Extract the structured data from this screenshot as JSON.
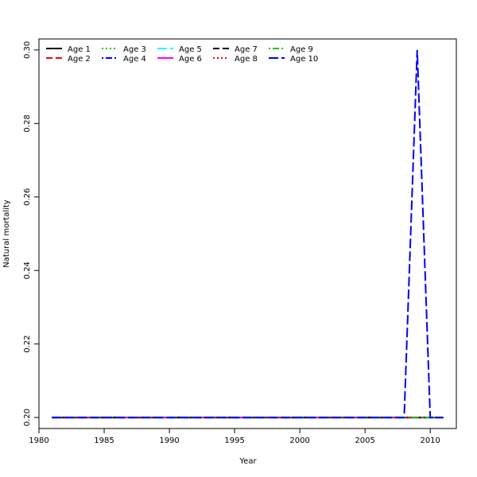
{
  "chart_data": {
    "type": "line",
    "title": "",
    "xlabel": "Year",
    "ylabel": "Natural mortality",
    "xlim": [
      1980,
      2012
    ],
    "ylim": [
      0.197,
      0.303
    ],
    "xticks": [
      1980,
      1985,
      1990,
      1995,
      2000,
      2005,
      2010
    ],
    "yticks": [
      0.2,
      0.22,
      0.24,
      0.26,
      0.28,
      0.3
    ],
    "ytick_labels": [
      "0.20",
      "0.22",
      "0.24",
      "0.26",
      "0.28",
      "0.30"
    ],
    "grid": false,
    "legend_position": "top-left",
    "x": [
      1981,
      1982,
      1983,
      1984,
      1985,
      1986,
      1987,
      1988,
      1989,
      1990,
      1991,
      1992,
      1993,
      1994,
      1995,
      1996,
      1997,
      1998,
      1999,
      2000,
      2001,
      2002,
      2003,
      2004,
      2005,
      2006,
      2007,
      2008,
      2009,
      2010,
      2011
    ],
    "series": [
      {
        "name": "Age 1",
        "color": "#000000",
        "dash": "solid",
        "values": [
          0.2,
          0.2,
          0.2,
          0.2,
          0.2,
          0.2,
          0.2,
          0.2,
          0.2,
          0.2,
          0.2,
          0.2,
          0.2,
          0.2,
          0.2,
          0.2,
          0.2,
          0.2,
          0.2,
          0.2,
          0.2,
          0.2,
          0.2,
          0.2,
          0.2,
          0.2,
          0.2,
          0.2,
          0.2,
          0.2,
          0.2
        ]
      },
      {
        "name": "Age 2",
        "color": "#ff0000",
        "dash": "dashed",
        "values": [
          0.2,
          0.2,
          0.2,
          0.2,
          0.2,
          0.2,
          0.2,
          0.2,
          0.2,
          0.2,
          0.2,
          0.2,
          0.2,
          0.2,
          0.2,
          0.2,
          0.2,
          0.2,
          0.2,
          0.2,
          0.2,
          0.2,
          0.2,
          0.2,
          0.2,
          0.2,
          0.2,
          0.2,
          0.2,
          0.2,
          0.2
        ]
      },
      {
        "name": "Age 3",
        "color": "#00cd00",
        "dash": "dotted",
        "values": [
          0.2,
          0.2,
          0.2,
          0.2,
          0.2,
          0.2,
          0.2,
          0.2,
          0.2,
          0.2,
          0.2,
          0.2,
          0.2,
          0.2,
          0.2,
          0.2,
          0.2,
          0.2,
          0.2,
          0.2,
          0.2,
          0.2,
          0.2,
          0.2,
          0.2,
          0.2,
          0.2,
          0.2,
          0.2,
          0.2,
          0.2
        ]
      },
      {
        "name": "Age 4",
        "color": "#0000ff",
        "dash": "dotdash",
        "values": [
          0.2,
          0.2,
          0.2,
          0.2,
          0.2,
          0.2,
          0.2,
          0.2,
          0.2,
          0.2,
          0.2,
          0.2,
          0.2,
          0.2,
          0.2,
          0.2,
          0.2,
          0.2,
          0.2,
          0.2,
          0.2,
          0.2,
          0.2,
          0.2,
          0.2,
          0.2,
          0.2,
          0.2,
          0.2,
          0.2,
          0.2
        ]
      },
      {
        "name": "Age 5",
        "color": "#00ffff",
        "dash": "longdash",
        "values": [
          0.2,
          0.2,
          0.2,
          0.2,
          0.2,
          0.2,
          0.2,
          0.2,
          0.2,
          0.2,
          0.2,
          0.2,
          0.2,
          0.2,
          0.2,
          0.2,
          0.2,
          0.2,
          0.2,
          0.2,
          0.2,
          0.2,
          0.2,
          0.2,
          0.2,
          0.2,
          0.2,
          0.2,
          0.2,
          0.2,
          0.2
        ]
      },
      {
        "name": "Age 6",
        "color": "#ff00ff",
        "dash": "solid",
        "values": [
          0.2,
          0.2,
          0.2,
          0.2,
          0.2,
          0.2,
          0.2,
          0.2,
          0.2,
          0.2,
          0.2,
          0.2,
          0.2,
          0.2,
          0.2,
          0.2,
          0.2,
          0.2,
          0.2,
          0.2,
          0.2,
          0.2,
          0.2,
          0.2,
          0.2,
          0.2,
          0.2,
          0.2,
          0.2,
          0.2,
          0.2
        ]
      },
      {
        "name": "Age 7",
        "color": "#000000",
        "dash": "dashed",
        "values": [
          0.2,
          0.2,
          0.2,
          0.2,
          0.2,
          0.2,
          0.2,
          0.2,
          0.2,
          0.2,
          0.2,
          0.2,
          0.2,
          0.2,
          0.2,
          0.2,
          0.2,
          0.2,
          0.2,
          0.2,
          0.2,
          0.2,
          0.2,
          0.2,
          0.2,
          0.2,
          0.2,
          0.2,
          0.2,
          0.2,
          0.2
        ]
      },
      {
        "name": "Age 8",
        "color": "#ff0000",
        "dash": "dotted",
        "values": [
          0.2,
          0.2,
          0.2,
          0.2,
          0.2,
          0.2,
          0.2,
          0.2,
          0.2,
          0.2,
          0.2,
          0.2,
          0.2,
          0.2,
          0.2,
          0.2,
          0.2,
          0.2,
          0.2,
          0.2,
          0.2,
          0.2,
          0.2,
          0.2,
          0.2,
          0.2,
          0.2,
          0.2,
          0.2,
          0.2,
          0.2
        ]
      },
      {
        "name": "Age 9",
        "color": "#00cd00",
        "dash": "dotdash",
        "values": [
          0.2,
          0.2,
          0.2,
          0.2,
          0.2,
          0.2,
          0.2,
          0.2,
          0.2,
          0.2,
          0.2,
          0.2,
          0.2,
          0.2,
          0.2,
          0.2,
          0.2,
          0.2,
          0.2,
          0.2,
          0.2,
          0.2,
          0.2,
          0.2,
          0.2,
          0.2,
          0.2,
          0.2,
          0.2,
          0.2,
          0.2
        ]
      },
      {
        "name": "Age 10",
        "color": "#0000ff",
        "dash": "longdash",
        "values": [
          0.2,
          0.2,
          0.2,
          0.2,
          0.2,
          0.2,
          0.2,
          0.2,
          0.2,
          0.2,
          0.2,
          0.2,
          0.2,
          0.2,
          0.2,
          0.2,
          0.2,
          0.2,
          0.2,
          0.2,
          0.2,
          0.2,
          0.2,
          0.2,
          0.2,
          0.2,
          0.2,
          0.2,
          0.3,
          0.2,
          0.2
        ]
      }
    ]
  }
}
